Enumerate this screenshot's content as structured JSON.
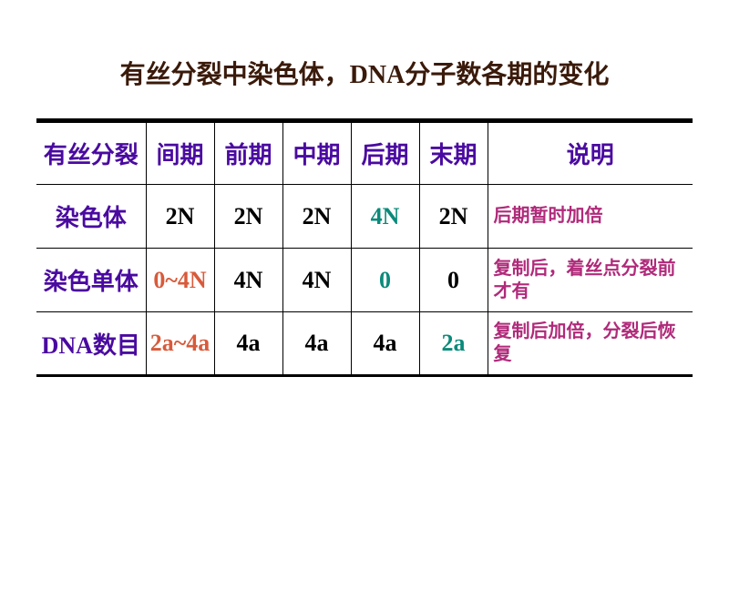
{
  "colors": {
    "title": "#3a1a0a",
    "header": "#4a0aa0",
    "rowLabel": "#4a0aa0",
    "cellDefault": "#000000",
    "redOrange": "#d85a3a",
    "teal": "#0a8a7a",
    "magenta": "#b02a7a"
  },
  "fonts": {
    "titleSize": 28,
    "headerSize": 26,
    "cellSize": 26,
    "descSize": 20
  },
  "title": "有丝分裂中染色体，DNA分子数各期的变化",
  "headers": [
    "有丝分裂",
    "间期",
    "前期",
    "中期",
    "后期",
    "末期",
    "说明"
  ],
  "rows": [
    {
      "label": "染色体",
      "cells": [
        {
          "text": "2N",
          "color": "#000000"
        },
        {
          "text": "2N",
          "color": "#000000"
        },
        {
          "text": "2N",
          "color": "#000000"
        },
        {
          "text": "4N",
          "color": "#0a8a7a"
        },
        {
          "text": "2N",
          "color": "#000000"
        }
      ],
      "desc": "后期暂时加倍"
    },
    {
      "label": "染色单体",
      "cells": [
        {
          "text": "0~4N",
          "color": "#d85a3a"
        },
        {
          "text": "4N",
          "color": "#000000"
        },
        {
          "text": "4N",
          "color": "#000000"
        },
        {
          "text": "0",
          "color": "#0a8a7a"
        },
        {
          "text": "0",
          "color": "#000000"
        }
      ],
      "desc": "复制后，着丝点分裂前才有"
    },
    {
      "label": "DNA数目",
      "cells": [
        {
          "text": "2a~4a",
          "color": "#d85a3a"
        },
        {
          "text": "4a",
          "color": "#000000"
        },
        {
          "text": "4a",
          "color": "#000000"
        },
        {
          "text": "4a",
          "color": "#000000"
        },
        {
          "text": "2a",
          "color": "#0a8a7a"
        }
      ],
      "desc": "复制后加倍，分裂后恢复"
    }
  ]
}
